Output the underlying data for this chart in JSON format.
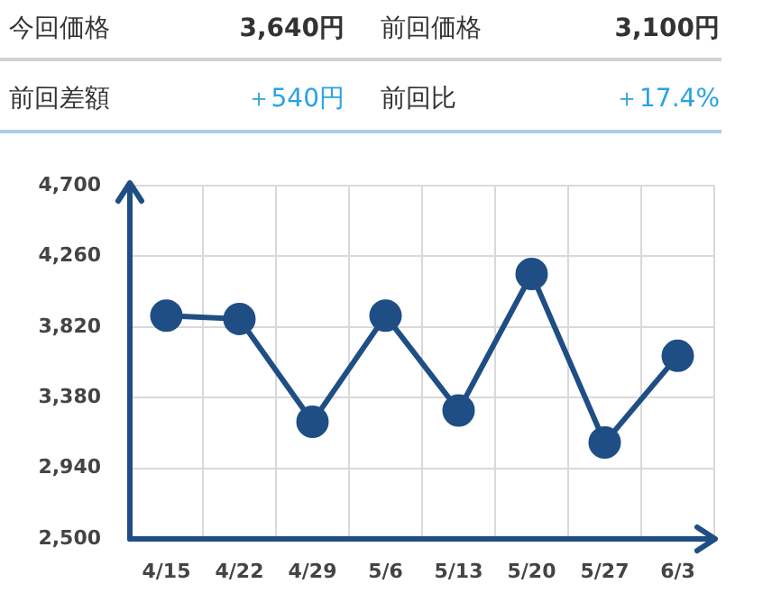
{
  "chart_data": [
    {
      "type": "other",
      "annotations": [
        "今回価格",
        "3,640円",
        "前回価格",
        "3,100円",
        "前回差額",
        "＋540円",
        "前回比",
        "＋17.4%"
      ]
    },
    {
      "type": "line",
      "categories": [
        "4/15",
        "4/22",
        "4/29",
        "5/6",
        "5/13",
        "5/20",
        "5/27",
        "6/3"
      ],
      "series": [
        {
          "color": "#1f4e85",
          "values": [
            3890,
            3870,
            3230,
            3890,
            3300,
            4150,
            3100,
            3640
          ]
        }
      ],
      "ylim": [
        2500,
        4700
      ],
      "yticks": [
        {
          "value": 2500,
          "label": "2,500"
        },
        {
          "value": 2940,
          "label": "2,940"
        },
        {
          "value": 3380,
          "label": "3,380"
        },
        {
          "value": 3820,
          "label": "3,820"
        },
        {
          "value": 4260,
          "label": "4,260"
        },
        {
          "value": 4700,
          "label": "4,700"
        }
      ],
      "grid": true,
      "marker": "circle"
    }
  ]
}
